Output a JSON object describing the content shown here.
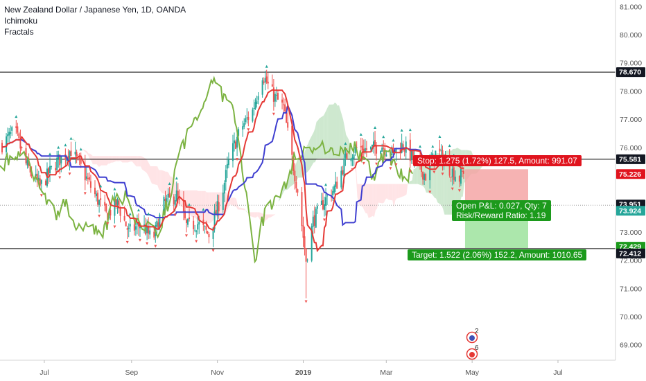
{
  "legend": {
    "title": "New Zealand Dollar / Japanese Yen, 1D, OANDA",
    "indicator1": "Ichimoku",
    "indicator2": "Fractals"
  },
  "colors": {
    "up": "#26a69a",
    "down": "#ef5350",
    "conversion_line": "#e53935",
    "base_line": "#3f3fd0",
    "lagging_span": "#7cb342",
    "cloud_bull": "#a5d6a7",
    "cloud_bear": "#ffcdd2",
    "stop_zone": "#f4a6a6",
    "target_zone": "#a3e4a3",
    "stop_badge": "#e0141e",
    "target_badge": "#1c9a1c"
  },
  "chart_data": {
    "type": "candlestick",
    "title": "New Zealand Dollar / Japanese Yen, 1D, OANDA",
    "yaxis": {
      "ticks": [
        "69.000",
        "70.000",
        "71.000",
        "72.000",
        "73.000",
        "74.000",
        "75.000",
        "76.000",
        "77.000",
        "78.000",
        "79.000",
        "80.000",
        "81.000"
      ]
    },
    "xaxis": {
      "ticks": [
        "Jul",
        "Sep",
        "Nov",
        "2019",
        "Mar",
        "May",
        "Jul"
      ]
    },
    "horizontal_lines": [
      78.67,
      75.581,
      72.412
    ],
    "price_labels": [
      "78.670",
      "75.581",
      "75.226",
      "73.951",
      "73.924",
      "72.429",
      "72.412"
    ],
    "close_series": [
      {
        "date": "2018-06-01",
        "close": 76.1
      },
      {
        "date": "2018-06-10",
        "close": 76.6
      },
      {
        "date": "2018-06-18",
        "close": 75.4
      },
      {
        "date": "2018-06-28",
        "close": 74.6
      },
      {
        "date": "2018-07-10",
        "close": 75.5
      },
      {
        "date": "2018-07-20",
        "close": 75.9
      },
      {
        "date": "2018-07-28",
        "close": 75.2
      },
      {
        "date": "2018-08-05",
        "close": 74.4
      },
      {
        "date": "2018-08-14",
        "close": 73.6
      },
      {
        "date": "2018-08-22",
        "close": 74.0
      },
      {
        "date": "2018-08-30",
        "close": 73.0
      },
      {
        "date": "2018-09-08",
        "close": 73.3
      },
      {
        "date": "2018-09-16",
        "close": 72.7
      },
      {
        "date": "2018-09-24",
        "close": 74.0
      },
      {
        "date": "2018-10-03",
        "close": 74.3
      },
      {
        "date": "2018-10-10",
        "close": 73.2
      },
      {
        "date": "2018-10-18",
        "close": 73.3
      },
      {
        "date": "2018-10-26",
        "close": 72.9
      },
      {
        "date": "2018-11-04",
        "close": 74.3
      },
      {
        "date": "2018-11-10",
        "close": 75.7
      },
      {
        "date": "2018-11-18",
        "close": 76.7
      },
      {
        "date": "2018-11-26",
        "close": 77.3
      },
      {
        "date": "2018-12-03",
        "close": 78.6
      },
      {
        "date": "2018-12-10",
        "close": 77.9
      },
      {
        "date": "2018-12-18",
        "close": 77.4
      },
      {
        "date": "2018-12-24",
        "close": 75.6
      },
      {
        "date": "2018-12-28",
        "close": 74.5
      },
      {
        "date": "2019-01-03",
        "close": 72.0
      },
      {
        "date": "2019-01-08",
        "close": 73.4
      },
      {
        "date": "2019-01-16",
        "close": 74.1
      },
      {
        "date": "2019-01-24",
        "close": 74.6
      },
      {
        "date": "2019-02-01",
        "close": 75.7
      },
      {
        "date": "2019-02-09",
        "close": 76.0
      },
      {
        "date": "2019-02-17",
        "close": 75.9
      },
      {
        "date": "2019-02-25",
        "close": 76.1
      },
      {
        "date": "2019-03-05",
        "close": 75.8
      },
      {
        "date": "2019-03-13",
        "close": 76.1
      },
      {
        "date": "2019-03-21",
        "close": 75.5
      },
      {
        "date": "2019-03-29",
        "close": 75.0
      },
      {
        "date": "2019-04-06",
        "close": 75.9
      },
      {
        "date": "2019-04-14",
        "close": 75.3
      },
      {
        "date": "2019-04-22",
        "close": 74.9
      },
      {
        "date": "2019-04-25",
        "close": 75.2
      }
    ]
  },
  "position": {
    "stop_label": "Stop: 1.275 (1.72%) 127.5, Amount: 991.07",
    "target_label": "Target: 1.522 (2.06%) 152.2, Amount: 1010.65",
    "open_pl": "Open P&L: 0.027, Qty: 7",
    "risk_reward": "Risk/Reward Ratio: 1.19",
    "entry": 73.951,
    "stop": 75.226,
    "target": 72.429
  },
  "events": [
    {
      "icon": "earnings-event-icon",
      "count": "2"
    },
    {
      "icon": "dividend-event-icon",
      "count": "6"
    }
  ]
}
